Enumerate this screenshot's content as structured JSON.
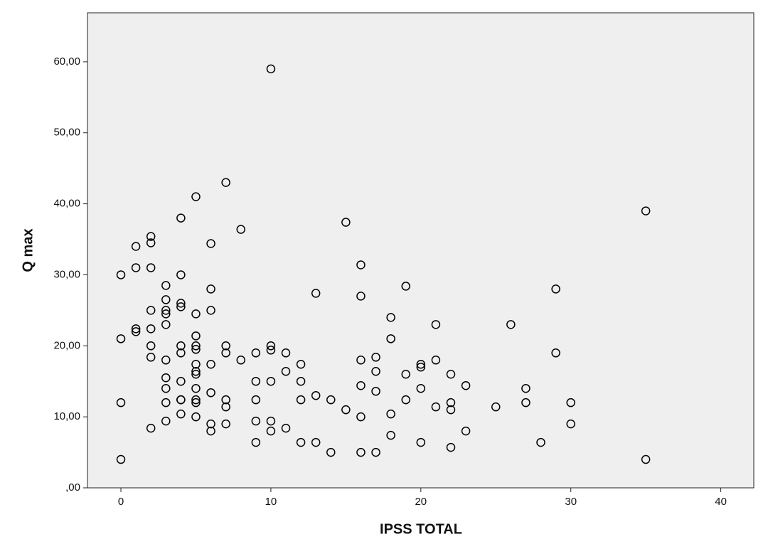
{
  "chart_data": {
    "type": "scatter",
    "xlabel": "IPSS TOTAL",
    "ylabel": "Q max",
    "x": [
      0,
      0,
      0,
      0,
      1,
      1,
      1,
      1,
      2,
      2,
      2,
      2,
      2,
      2,
      2,
      2,
      3,
      3,
      3,
      3,
      3,
      3,
      3,
      3,
      3,
      3,
      4,
      4,
      4,
      4,
      4,
      4,
      4,
      4,
      4,
      4,
      5,
      5,
      5,
      5,
      5,
      5,
      5,
      5,
      5,
      5,
      5,
      5,
      6,
      6,
      6,
      6,
      6,
      6,
      6,
      7,
      7,
      7,
      7,
      7,
      7,
      8,
      8,
      9,
      9,
      9,
      9,
      9,
      10,
      10,
      10,
      10,
      10,
      10,
      11,
      11,
      11,
      12,
      12,
      12,
      12,
      13,
      13,
      13,
      14,
      14,
      15,
      15,
      16,
      16,
      16,
      16,
      16,
      16,
      17,
      17,
      17,
      17,
      18,
      18,
      18,
      18,
      19,
      19,
      19,
      20,
      20,
      20,
      20,
      21,
      21,
      21,
      22,
      22,
      22,
      22,
      23,
      23,
      25,
      26,
      27,
      27,
      28,
      29,
      29,
      30,
      30,
      35,
      35
    ],
    "values": [
      30,
      21,
      12,
      4,
      34,
      31,
      22.4,
      22,
      35.4,
      34.5,
      31,
      25,
      22.4,
      20,
      18.4,
      8.4,
      28.5,
      26.5,
      25,
      24.5,
      23,
      18,
      15.5,
      14,
      12,
      9.4,
      38,
      30,
      26,
      25.5,
      20,
      19,
      15,
      12.4,
      12.4,
      10.4,
      41,
      24.5,
      21.4,
      20,
      19.5,
      17.4,
      16.4,
      16,
      14,
      12.4,
      12,
      10,
      34.4,
      28,
      25,
      17.4,
      13.4,
      9,
      8,
      43,
      20,
      19,
      12.4,
      11.4,
      9,
      36.4,
      18,
      19,
      15,
      12.4,
      9.4,
      6.4,
      59,
      20,
      19.4,
      15,
      9.4,
      8,
      19,
      16.4,
      8.4,
      17.4,
      15,
      12.4,
      6.4,
      27.4,
      13,
      6.4,
      12.4,
      5,
      37.4,
      11,
      31.4,
      27,
      18,
      14.4,
      10,
      5,
      18.4,
      16.4,
      13.6,
      5,
      24,
      21,
      10.4,
      7.4,
      28.4,
      16,
      12.4,
      17.4,
      17,
      14,
      6.4,
      23,
      18,
      11.4,
      16,
      12,
      11,
      5.7,
      14.4,
      8,
      11.4,
      23,
      14,
      12,
      6.4,
      28,
      19,
      12,
      9,
      39,
      4
    ],
    "color": "#000000",
    "xlim": [
      -2.23,
      42.2
    ],
    "ylim": [
      0,
      66.9
    ],
    "xticks": [
      0,
      10,
      20,
      30,
      40
    ],
    "yticks": [
      {
        "value": 0,
        "label": ",00"
      },
      {
        "value": 10,
        "label": "10,00"
      },
      {
        "value": 20,
        "label": "20,00"
      },
      {
        "value": 30,
        "label": "30,00"
      },
      {
        "value": 40,
        "label": "40,00"
      },
      {
        "value": 50,
        "label": "50,00"
      },
      {
        "value": 60,
        "label": "60,00"
      }
    ]
  }
}
